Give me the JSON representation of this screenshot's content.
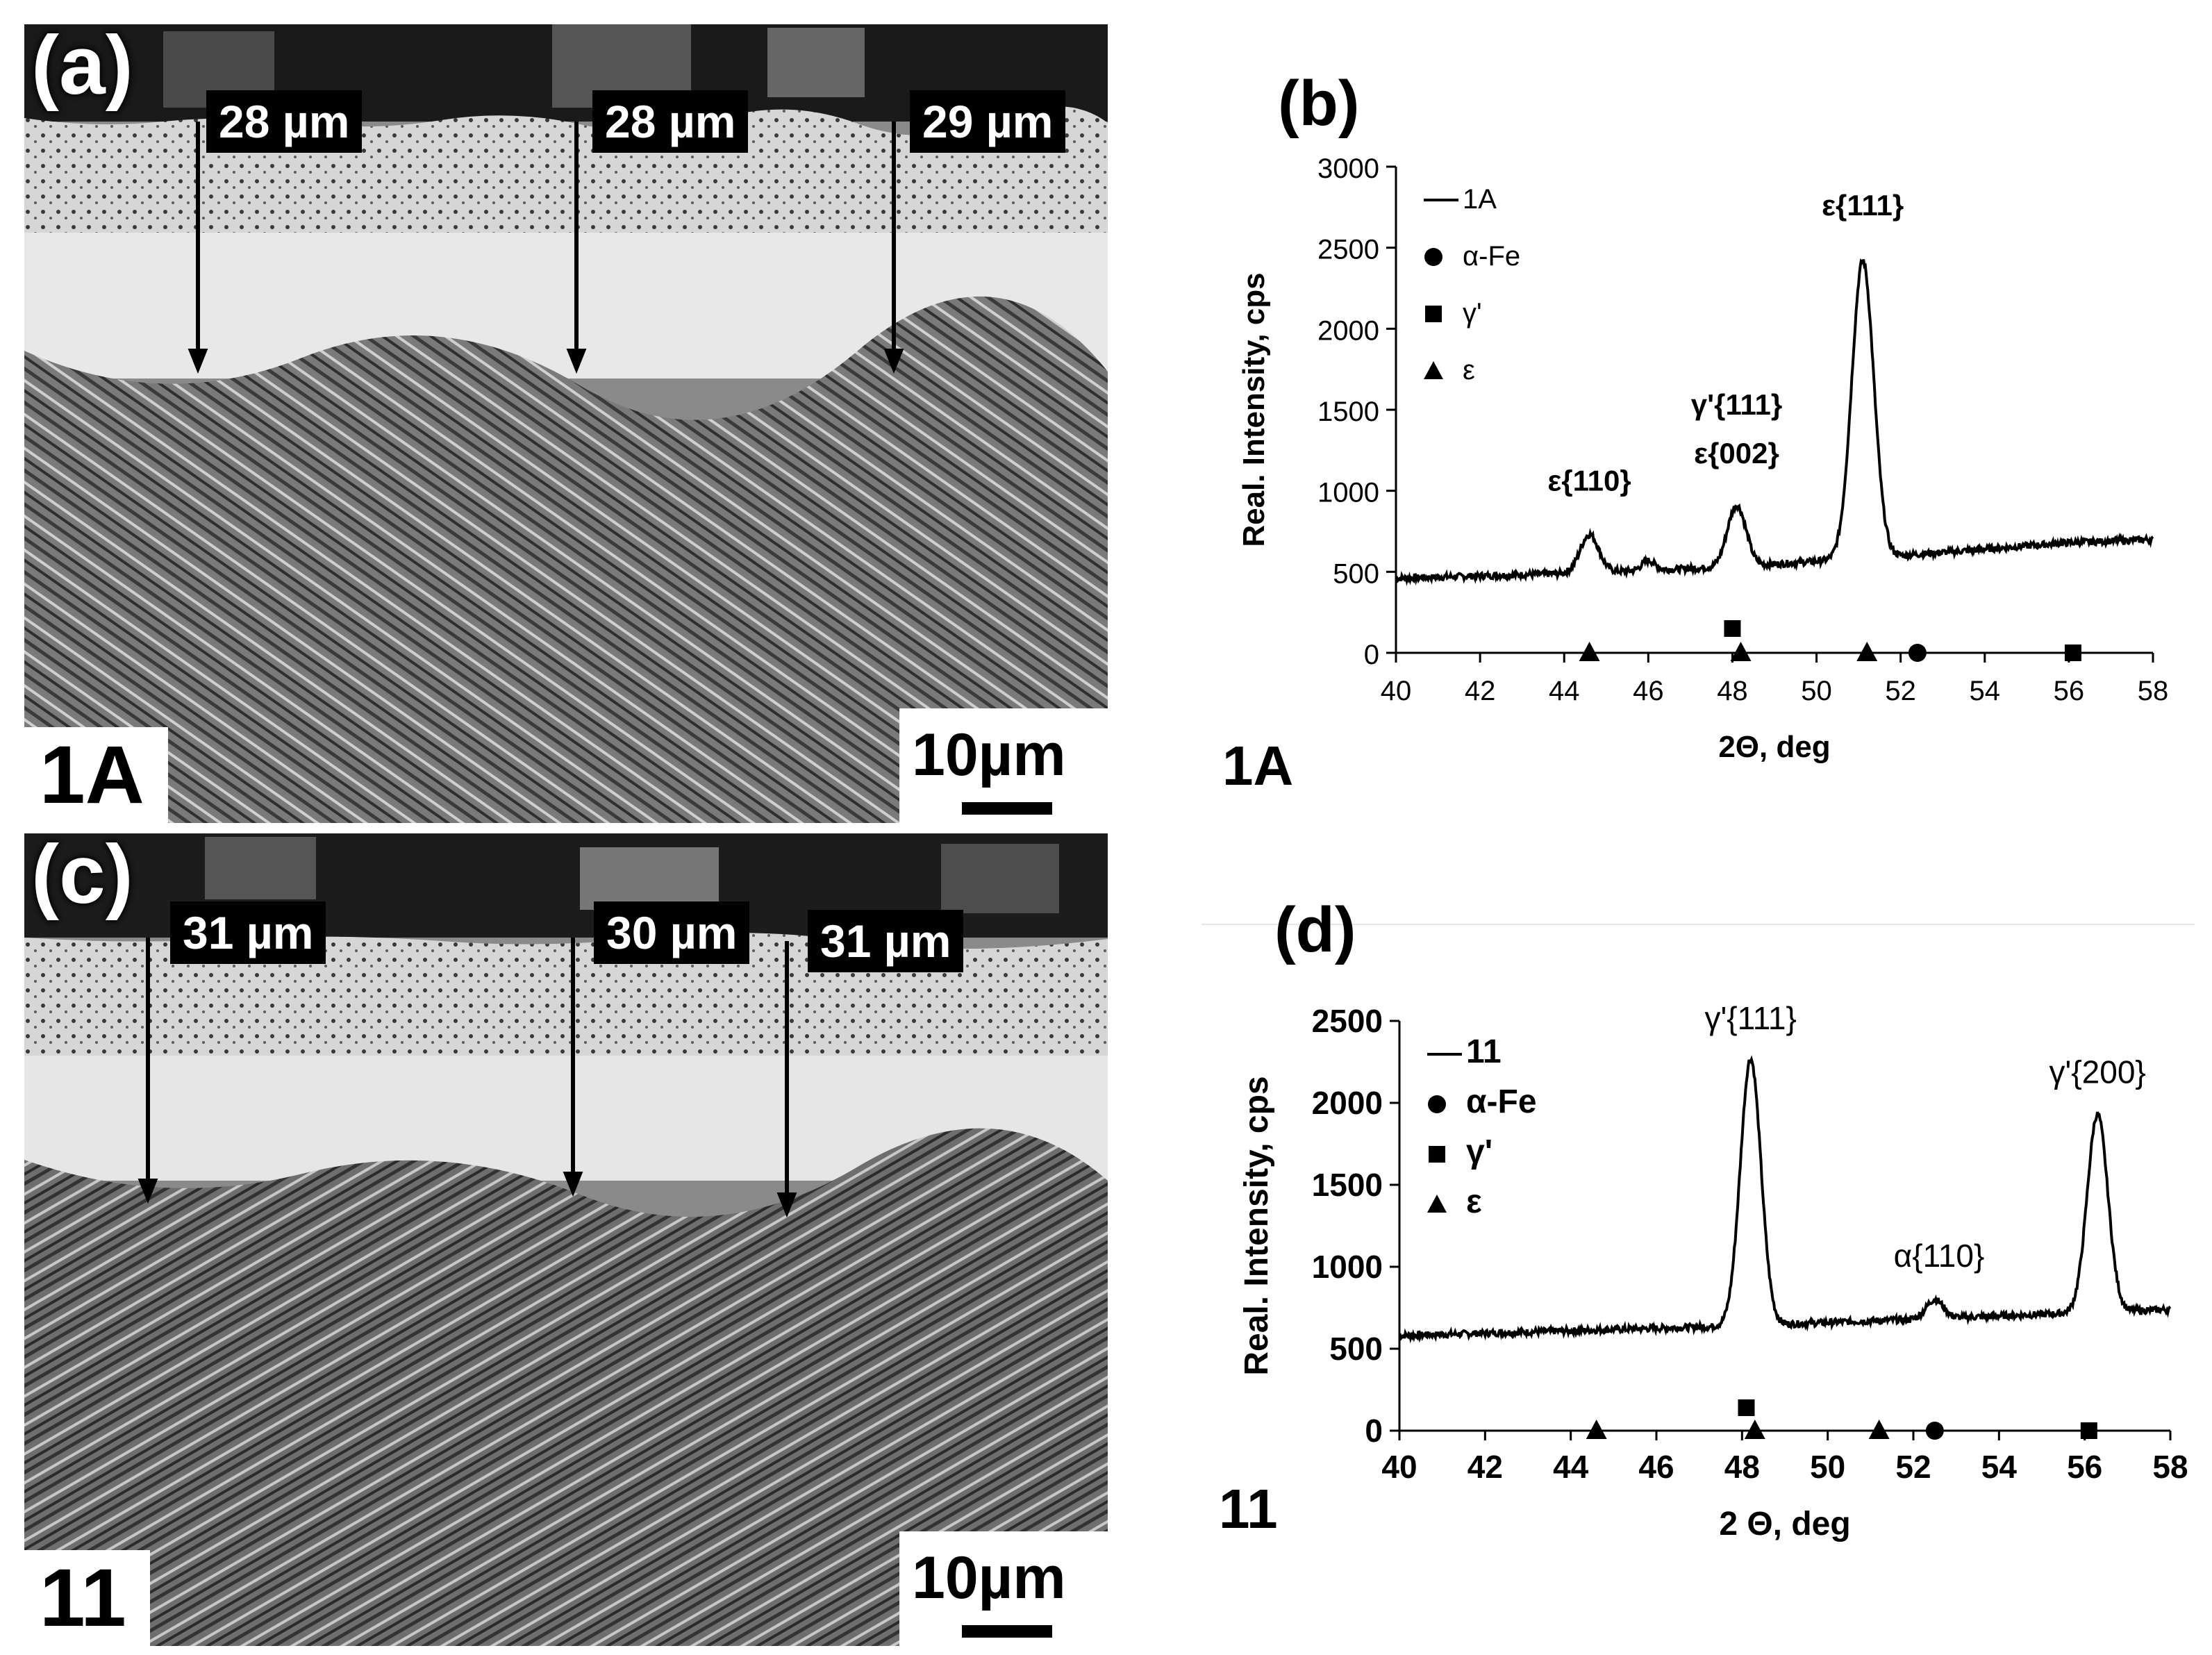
{
  "panels": {
    "a": {
      "letter": "(a)",
      "sample": "1A",
      "scale": "10µm",
      "measurements": [
        "28 µm",
        "28 µm",
        "29 µm"
      ]
    },
    "c": {
      "letter": "(c)",
      "sample": "11",
      "scale": "10µm",
      "measurements": [
        "31 µm",
        "30 µm",
        "31 µm"
      ]
    }
  },
  "chart_data": [
    {
      "panel": "(b)",
      "sample_label": "1A",
      "type": "line",
      "xlabel": "2Θ, deg",
      "ylabel": "Real. Intensity, cps",
      "xlim": [
        40,
        58
      ],
      "ylim": [
        0,
        3000
      ],
      "xticks": [
        "40",
        "42",
        "44",
        "46",
        "48",
        "50",
        "52",
        "54",
        "56",
        "58"
      ],
      "yticks": [
        "0",
        "500",
        "1000",
        "1500",
        "2000",
        "2500",
        "3000"
      ],
      "legend": [
        "1A",
        "α-Fe",
        "γ'",
        "ε"
      ],
      "legend_position": "top-left",
      "series": [
        {
          "name": "1A",
          "baseline": [
            [
              40,
              460
            ],
            [
              44,
              490
            ],
            [
              46,
              510
            ],
            [
              48,
              530
            ],
            [
              52,
              600
            ],
            [
              54,
              640
            ],
            [
              56,
              680
            ],
            [
              58,
              700
            ]
          ],
          "peaks": [
            [
              44.6,
              730,
              0.22
            ],
            [
              46.0,
              570,
              0.15
            ],
            [
              48.1,
              910,
              0.22
            ],
            [
              51.1,
              2420,
              0.26
            ]
          ]
        }
      ],
      "markers": {
        "alpha_fe": [
          [
            52.4,
            0
          ]
        ],
        "gamma_prime": [
          [
            48.0,
            150
          ],
          [
            56.1,
            0
          ]
        ],
        "epsilon": [
          [
            44.6,
            0
          ],
          [
            48.2,
            0
          ],
          [
            51.2,
            0
          ]
        ]
      },
      "annotations": [
        {
          "text": "ε{110}",
          "x": 44.6,
          "y": 1000
        },
        {
          "text": "γ'{111}",
          "x": 48.1,
          "y": 1470
        },
        {
          "text": "ε{002}",
          "x": 48.1,
          "y": 1170
        },
        {
          "text": "ε{111}",
          "x": 51.1,
          "y": 2700
        }
      ]
    },
    {
      "panel": "(d)",
      "sample_label": "11",
      "type": "line",
      "xlabel": "2 Θ, deg",
      "ylabel": "Real. Intensity, cps",
      "xlim": [
        40,
        58
      ],
      "ylim": [
        0,
        2500
      ],
      "xticks": [
        "40",
        "42",
        "44",
        "46",
        "48",
        "50",
        "52",
        "54",
        "56",
        "58"
      ],
      "yticks": [
        "0",
        "500",
        "1000",
        "1500",
        "2000",
        "2500"
      ],
      "legend": [
        "11",
        "α-Fe",
        "γ'",
        "ε"
      ],
      "legend_position": "top-left",
      "series": [
        {
          "name": "11",
          "baseline": [
            [
              40,
              580
            ],
            [
              44,
              610
            ],
            [
              48,
              640
            ],
            [
              52,
              680
            ],
            [
              56,
              720
            ],
            [
              58,
              740
            ]
          ],
          "peaks": [
            [
              48.2,
              2270,
              0.24
            ],
            [
              52.5,
              800,
              0.2
            ],
            [
              56.3,
              1930,
              0.24
            ]
          ]
        }
      ],
      "markers": {
        "alpha_fe": [
          [
            52.5,
            0
          ]
        ],
        "gamma_prime": [
          [
            48.1,
            140
          ],
          [
            56.1,
            0
          ]
        ],
        "epsilon": [
          [
            44.6,
            0
          ],
          [
            48.3,
            0
          ],
          [
            51.2,
            0
          ]
        ]
      },
      "annotations": [
        {
          "text": "γ'{111}",
          "x": 48.2,
          "y": 2450
        },
        {
          "text": "α{110}",
          "x": 52.6,
          "y": 1000
        },
        {
          "text": "γ'{200}",
          "x": 56.3,
          "y": 2120
        }
      ]
    }
  ]
}
